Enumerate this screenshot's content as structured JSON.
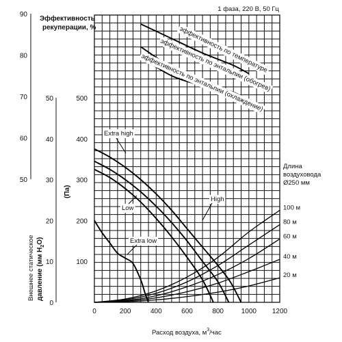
{
  "header": {
    "power_spec": "1 фаза, 220 В, 50 Гц",
    "efficiency_title_line1": "Эффективность",
    "efficiency_title_line2": "рекуперации, %"
  },
  "axes": {
    "xlabel": "Расход воздуха, м",
    "xlabel_sup": "3",
    "xlabel_suffix": "/час",
    "pressure_unit": "(Па)",
    "static_label_line1": "Внешнее статическое",
    "static_label_line2": "давление (мм Н",
    "static_label_sub": "2",
    "static_label_end": "О)"
  },
  "duct": {
    "title_line1": "Длина",
    "title_line2": "воздуховода",
    "title_line3": "Ø250 мм"
  },
  "chart_data": {
    "type": "line",
    "x_ticks": [
      "0",
      "200",
      "400",
      "600",
      "800",
      "1000",
      "1200"
    ],
    "xlim": [
      0,
      1200
    ],
    "pa_ticks": [
      "100",
      "200",
      "300",
      "400",
      "500"
    ],
    "pa_lim": [
      0,
      500
    ],
    "mm_ticks": [
      "0",
      "10",
      "20",
      "30",
      "40",
      "50"
    ],
    "mm_lim": [
      0,
      50
    ],
    "eff_ticks": [
      "50",
      "60",
      "70",
      "80",
      "90"
    ],
    "eff_lim": [
      50,
      90
    ],
    "fan_series": [
      {
        "name": "Extra high",
        "points": [
          [
            0,
            375
          ],
          [
            100,
            355
          ],
          [
            200,
            330
          ],
          [
            300,
            300
          ],
          [
            400,
            265
          ],
          [
            500,
            225
          ],
          [
            600,
            180
          ],
          [
            700,
            135
          ],
          [
            800,
            90
          ],
          [
            880,
            50
          ],
          [
            950,
            0
          ]
        ]
      },
      {
        "name": "High",
        "points": [
          [
            0,
            345
          ],
          [
            100,
            325
          ],
          [
            200,
            300
          ],
          [
            300,
            270
          ],
          [
            400,
            235
          ],
          [
            500,
            195
          ],
          [
            600,
            150
          ],
          [
            700,
            100
          ],
          [
            800,
            50
          ],
          [
            870,
            0
          ]
        ]
      },
      {
        "name": "Low",
        "points": [
          [
            0,
            325
          ],
          [
            100,
            305
          ],
          [
            200,
            278
          ],
          [
            300,
            245
          ],
          [
            400,
            205
          ],
          [
            500,
            160
          ],
          [
            600,
            110
          ],
          [
            700,
            55
          ],
          [
            770,
            0
          ]
        ]
      },
      {
        "name": "Extra low",
        "points": [
          [
            0,
            200
          ],
          [
            50,
            170
          ],
          [
            100,
            145
          ],
          [
            150,
            120
          ],
          [
            200,
            108
          ],
          [
            250,
            95
          ],
          [
            300,
            55
          ],
          [
            330,
            20
          ],
          [
            350,
            0
          ]
        ]
      }
    ],
    "duct_series": [
      {
        "name": "100 м",
        "points": [
          [
            0,
            0
          ],
          [
            200,
            8
          ],
          [
            400,
            28
          ],
          [
            600,
            62
          ],
          [
            800,
            110
          ],
          [
            1000,
            172
          ],
          [
            1200,
            225
          ]
        ]
      },
      {
        "name": "80 м",
        "points": [
          [
            0,
            0
          ],
          [
            200,
            6
          ],
          [
            400,
            22
          ],
          [
            600,
            50
          ],
          [
            800,
            90
          ],
          [
            1000,
            140
          ],
          [
            1200,
            190
          ]
        ]
      },
      {
        "name": "60 м",
        "points": [
          [
            0,
            0
          ],
          [
            200,
            4
          ],
          [
            400,
            16
          ],
          [
            600,
            38
          ],
          [
            800,
            68
          ],
          [
            1000,
            107
          ],
          [
            1200,
            155
          ]
        ]
      },
      {
        "name": "40 м",
        "points": [
          [
            0,
            0
          ],
          [
            200,
            3
          ],
          [
            400,
            11
          ],
          [
            600,
            26
          ],
          [
            800,
            47
          ],
          [
            1000,
            75
          ],
          [
            1200,
            105
          ]
        ]
      },
      {
        "name": "20 м",
        "points": [
          [
            0,
            0
          ],
          [
            200,
            1.5
          ],
          [
            400,
            6
          ],
          [
            600,
            14
          ],
          [
            800,
            25
          ],
          [
            1000,
            40
          ],
          [
            1200,
            60
          ]
        ]
      }
    ],
    "efficiency_series": [
      {
        "name": "эффективность по температуре",
        "points": [
          [
            300,
            87.5
          ],
          [
            500,
            84
          ],
          [
            700,
            80.5
          ],
          [
            900,
            77.5
          ],
          [
            1000,
            75.5
          ]
        ]
      },
      {
        "name": "эффективность по энтальпии (обогрев)",
        "points": [
          [
            300,
            82
          ],
          [
            500,
            77
          ],
          [
            700,
            73.5
          ],
          [
            900,
            71
          ],
          [
            1000,
            69
          ]
        ]
      },
      {
        "name": "эффективность по энтальпии (охлаждение)",
        "points": [
          [
            300,
            79.5
          ],
          [
            500,
            75
          ],
          [
            700,
            72.5
          ],
          [
            900,
            70
          ],
          [
            1000,
            68
          ]
        ]
      }
    ]
  }
}
